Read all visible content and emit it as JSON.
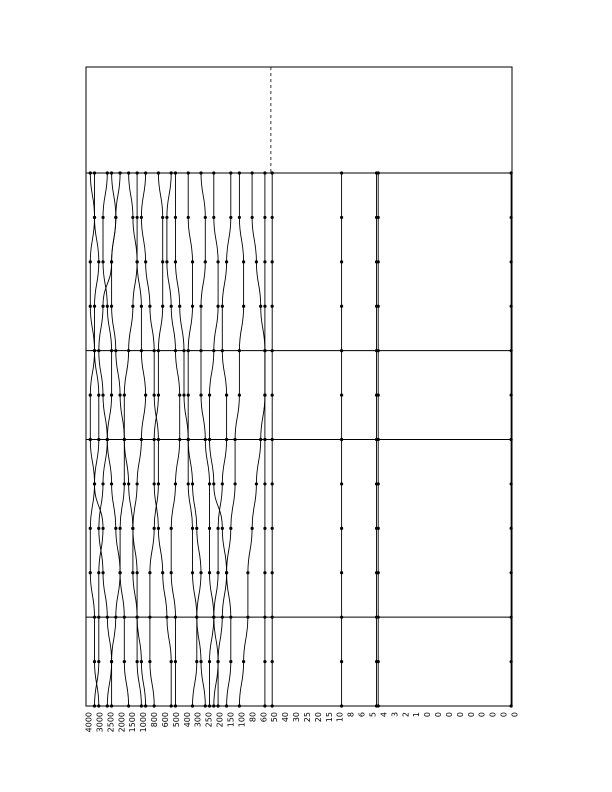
{
  "chart_data": {
    "type": "line",
    "title": "",
    "xlabel": "",
    "ylabel": "",
    "grid": false,
    "legend": "none",
    "orientation": "vertical bundle of trajectories",
    "row_levels": 13,
    "row_bands": [
      {
        "from": 0,
        "to": 5
      },
      {
        "from": 5,
        "to": 7.5
      },
      {
        "from": 7.5,
        "to": 12.5
      },
      {
        "from": 12.5,
        "to": 15
      }
    ],
    "reference_line": {
      "x": 43.4,
      "style": "dashed"
    },
    "x_range": [
      0,
      100
    ],
    "tick_labels": [
      "4000",
      "3000",
      "2500",
      "2000",
      "1500",
      "1000",
      "800",
      "600",
      "500",
      "400",
      "300",
      "250",
      "200",
      "150",
      "100",
      "80",
      "60",
      "50",
      "40",
      "30",
      "25",
      "20",
      "15",
      "10",
      "8",
      "6",
      "5",
      "4",
      "3",
      "2",
      "1",
      "0",
      "0",
      "0",
      "0",
      "0",
      "0",
      "0",
      "0",
      "0"
    ],
    "series": [
      {
        "values": [
          1,
          2,
          1,
          1,
          2,
          3,
          3,
          2,
          1,
          1,
          2,
          2,
          3
        ]
      },
      {
        "values": [
          2,
          2,
          3,
          2,
          2,
          1,
          1,
          2,
          4,
          3,
          3,
          3,
          2
        ]
      },
      {
        "values": [
          5,
          4,
          4,
          5,
          6,
          6,
          5,
          4,
          3,
          4,
          5,
          6,
          6
        ]
      },
      {
        "values": [
          6,
          7,
          6,
          4,
          3,
          4,
          5,
          6,
          7,
          8,
          9,
          9,
          10
        ]
      },
      {
        "values": [
          8,
          7,
          6,
          6,
          7,
          8,
          9,
          9,
          8,
          8,
          7,
          6,
          5
        ]
      },
      {
        "values": [
          10,
          11,
          12,
          11,
          10,
          9,
          9,
          10,
          11,
          12,
          12,
          13,
          14
        ]
      },
      {
        "values": [
          12,
          12,
          12,
          13,
          13,
          14,
          13,
          12,
          11,
          11,
          12,
          12,
          13
        ]
      },
      {
        "values": [
          14,
          13,
          14,
          15,
          16,
          16,
          17,
          17,
          16,
          15,
          15,
          15,
          16
        ]
      },
      {
        "values": [
          17,
          18,
          18,
          18,
          17,
          17,
          16,
          16,
          17,
          18,
          19,
          20,
          20
        ]
      },
      {
        "values": [
          20,
          19,
          19,
          20,
          21,
          22,
          22,
          21,
          20,
          20,
          21,
          21,
          21
        ]
      },
      {
        "values": [
          21,
          21,
          21,
          22,
          23,
          23,
          24,
          24,
          25,
          25,
          26,
          27,
          28
        ]
      },
      {
        "values": [
          24,
          24,
          25,
          25,
          24,
          24,
          24,
          25,
          26,
          27,
          26,
          26,
          25
        ]
      },
      {
        "values": [
          27,
          28,
          28,
          27,
          27,
          27,
          28,
          29,
          29,
          29,
          30,
          31,
          31
        ]
      },
      {
        "values": [
          30,
          30,
          31,
          31,
          30,
          29,
          29,
          30,
          32,
          33,
          34,
          34,
          33
        ]
      },
      {
        "values": [
          34,
          34,
          33,
          32,
          32,
          33,
          33,
          32,
          31,
          31,
          30,
          29,
          29
        ]
      },
      {
        "values": [
          36,
          36,
          37,
          37,
          36,
          36,
          35,
          35,
          34,
          33,
          32,
          31,
          30
        ]
      },
      {
        "values": [
          39,
          39,
          40,
          41,
          42,
          42,
          41,
          40,
          39,
          38,
          38,
          37,
          36
        ]
      },
      {
        "values": [
          42,
          42,
          42,
          42,
          42,
          42,
          42,
          42,
          42,
          42,
          42,
          42,
          42
        ]
      },
      {
        "values": [
          43.7,
          43.7,
          43.7,
          43.7,
          43.7,
          43.7,
          43.7,
          43.7,
          43.7,
          43.7,
          43.7,
          43.7,
          43.7
        ]
      },
      {
        "values": [
          60,
          60,
          60,
          60,
          60,
          60,
          60,
          60,
          60,
          60,
          60,
          60,
          60
        ]
      },
      {
        "values": [
          68.2,
          68.2,
          68.2,
          68.2,
          68.2,
          68.2,
          68.2,
          68.2,
          68.2,
          68.2,
          68.2,
          68.2,
          68.2
        ]
      },
      {
        "values": [
          68.6,
          68.6,
          68.6,
          68.6,
          68.6,
          68.6,
          68.6,
          68.6,
          68.6,
          68.6,
          68.6,
          68.6,
          68.6
        ]
      },
      {
        "values": [
          99.8,
          99.8,
          99.8,
          99.8,
          99.8,
          99.8,
          99.8,
          99.8,
          99.8,
          99.8,
          99.8,
          99.8,
          99.8
        ]
      }
    ]
  }
}
